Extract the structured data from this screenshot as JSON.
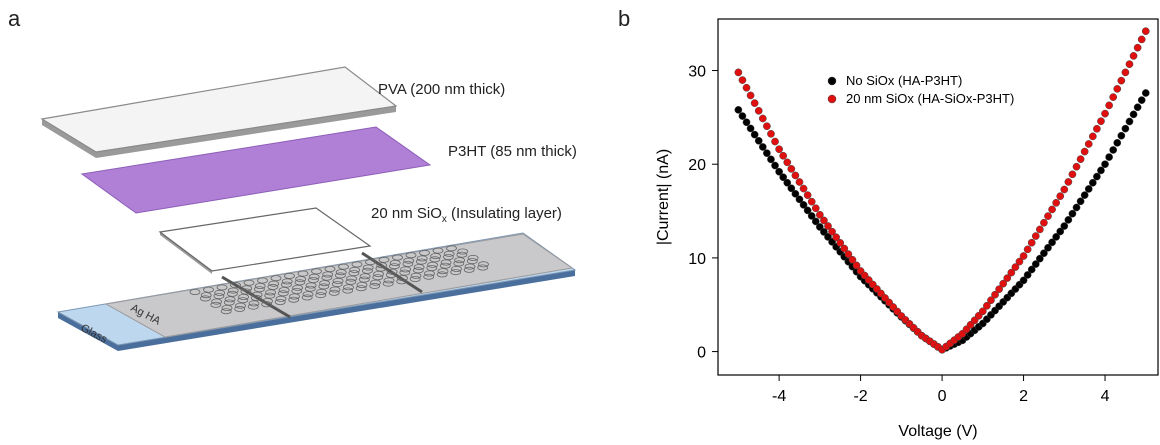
{
  "panel_a": {
    "letter": "a",
    "labels": {
      "pva": "PVA (200 nm thick)",
      "p3ht": "P3HT (85 nm thick)",
      "siox_main": "20 nm SiO",
      "siox_sub": "x",
      "siox_rest": " (Insulating layer)",
      "ag_ha": "Ag HA",
      "glass": "Glass"
    },
    "colors": {
      "p3ht": "#b07fd6",
      "glass": "#bcd7ee",
      "ag_ha": "#c9c9cb",
      "pva": "#f4f4f4"
    }
  },
  "panel_b": {
    "letter": "b"
  },
  "chart_data": {
    "type": "scatter",
    "xlabel": "Voltage (V)",
    "ylabel": "|Current| (nA)",
    "xlim": [
      -5.5,
      5.3
    ],
    "ylim": [
      -2.5,
      35.5
    ],
    "xticks": [
      -4,
      -2,
      0,
      2,
      4
    ],
    "yticks": [
      0,
      10,
      20,
      30
    ],
    "legend_position": "top-center",
    "series": [
      {
        "name": "No SiOx (HA-P3HT)",
        "color": "#000000",
        "x": [
          -5.0,
          -4.0,
          -3.0,
          -2.0,
          -1.0,
          -0.5,
          0.0,
          0.5,
          1.0,
          2.0,
          3.0,
          4.0,
          5.0
        ],
        "y": [
          25.8,
          19.2,
          13.3,
          8.0,
          3.7,
          1.7,
          0.2,
          1.2,
          3.0,
          7.6,
          13.4,
          20.0,
          27.6
        ]
      },
      {
        "name": "20 nm SiOx (HA-SiOx-P3HT)",
        "color": "#e01010",
        "x": [
          -5.0,
          -4.0,
          -3.0,
          -2.0,
          -1.0,
          -0.5,
          0.0,
          0.5,
          1.0,
          2.0,
          3.0,
          4.0,
          5.0
        ],
        "y": [
          29.8,
          21.6,
          14.6,
          8.6,
          3.8,
          1.7,
          0.2,
          1.9,
          4.3,
          10.2,
          17.3,
          25.4,
          34.2
        ]
      }
    ]
  }
}
